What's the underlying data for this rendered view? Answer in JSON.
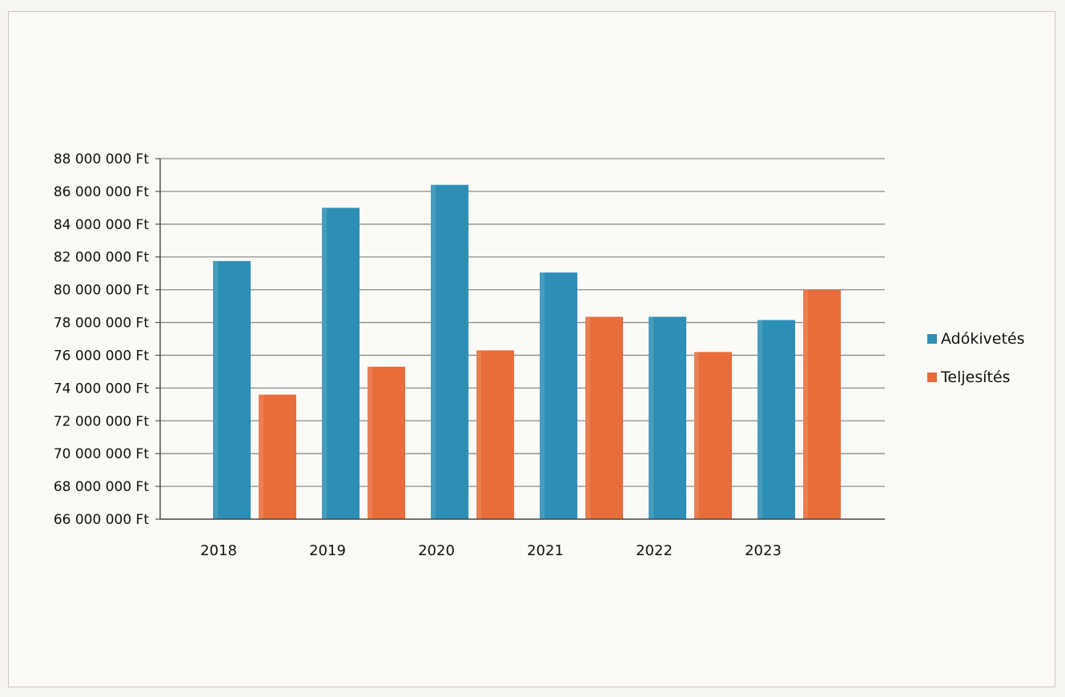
{
  "chart_data": {
    "type": "bar",
    "title": "",
    "xlabel": "",
    "ylabel": "",
    "categories": [
      "2018",
      "2019",
      "2020",
      "2021",
      "2022",
      "2023"
    ],
    "series": [
      {
        "name": "Adókivetés",
        "color": "#2e8fb6",
        "values": [
          81750000,
          85000000,
          86400000,
          81050000,
          78350000,
          78150000
        ]
      },
      {
        "name": "Teljesítés",
        "color": "#e86d3a",
        "values": [
          73600000,
          75300000,
          76300000,
          78350000,
          76200000,
          80000000
        ]
      }
    ],
    "ylim": [
      66000000,
      88000000
    ],
    "ytick_step": 2000000,
    "ytick_labels": [
      "66 000 000 Ft",
      "68 000 000 Ft",
      "70 000 000 Ft",
      "72 000 000 Ft",
      "74 000 000 Ft",
      "76 000 000 Ft",
      "78 000 000 Ft",
      "80 000 000 Ft",
      "82 000 000 Ft",
      "84 000 000 Ft",
      "86 000 000 Ft",
      "88 000 000 Ft"
    ],
    "grid": true,
    "legend_position": "right"
  }
}
